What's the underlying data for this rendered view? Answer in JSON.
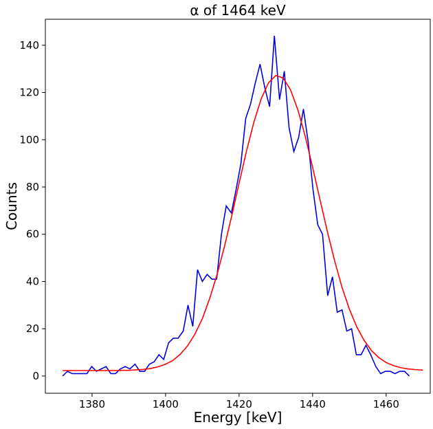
{
  "chart_data": {
    "type": "line",
    "title": "α of 1464 keV",
    "x_label": "Energy [keV]",
    "y_label": "Counts",
    "xlim": [
      1367.3,
      1472
    ],
    "ylim": [
      -7.3,
      151
    ],
    "xticks": [
      1380,
      1400,
      1420,
      1440,
      1460
    ],
    "yticks": [
      0,
      20,
      40,
      60,
      80,
      100,
      120,
      140
    ],
    "grid": false,
    "series": [
      {
        "color": "#0000dd",
        "x": [
          1372.0,
          1373.3,
          1374.6,
          1375.9,
          1377.2,
          1378.6,
          1379.9,
          1381.2,
          1382.5,
          1383.8,
          1385.1,
          1386.4,
          1387.7,
          1389.0,
          1390.3,
          1391.7,
          1393.0,
          1394.3,
          1395.6,
          1396.9,
          1398.2,
          1399.5,
          1400.8,
          1402.1,
          1403.4,
          1404.8,
          1406.1,
          1407.4,
          1408.7,
          1410.0,
          1411.3,
          1412.6,
          1413.9,
          1415.2,
          1416.5,
          1417.9,
          1419.2,
          1420.5,
          1421.8,
          1423.1,
          1424.4,
          1425.7,
          1427.0,
          1428.3,
          1429.6,
          1431.0,
          1432.3,
          1433.6,
          1434.9,
          1436.2,
          1437.5,
          1438.8,
          1440.1,
          1441.4,
          1442.7,
          1444.1,
          1445.4,
          1446.7,
          1448.0,
          1449.3,
          1450.6,
          1451.9,
          1453.2,
          1454.5,
          1455.8,
          1457.2,
          1458.5,
          1459.8,
          1461.1,
          1462.4,
          1463.7,
          1465.0,
          1466.3
        ],
        "values": [
          0,
          2,
          1,
          1,
          1,
          1,
          4,
          2,
          3,
          4,
          1,
          1,
          3,
          4,
          3,
          5,
          2,
          2,
          5,
          6,
          9,
          7,
          14,
          16,
          16,
          19,
          30,
          21,
          45,
          40,
          43,
          41,
          41,
          60,
          72,
          69,
          79,
          90,
          109,
          115,
          124,
          132,
          122,
          114,
          144,
          117,
          129,
          105,
          95,
          101,
          113,
          99,
          79,
          64,
          60,
          34,
          42,
          27,
          28,
          19,
          20,
          9,
          9,
          13,
          9,
          4,
          1,
          2,
          2,
          1,
          2,
          2,
          0
        ]
      },
      {
        "color": "#ff0000",
        "x": [
          1372,
          1374,
          1376,
          1378,
          1380,
          1382,
          1384,
          1386,
          1388,
          1390,
          1392,
          1394,
          1396,
          1398,
          1400,
          1402,
          1404,
          1406,
          1408,
          1410,
          1412,
          1414,
          1416,
          1418,
          1420,
          1422,
          1424,
          1426,
          1428,
          1430,
          1432,
          1434,
          1436,
          1438,
          1440,
          1442,
          1444,
          1446,
          1448,
          1450,
          1452,
          1454,
          1456,
          1458,
          1460,
          1462,
          1464,
          1466,
          1468,
          1470
        ],
        "values": [
          2.3,
          2.3,
          2.3,
          2.3,
          2.3,
          2.3,
          2.3,
          2.3,
          2.4,
          2.4,
          2.6,
          2.8,
          3.2,
          3.9,
          5.0,
          6.6,
          9.2,
          12.8,
          17.8,
          24.3,
          32.8,
          42.9,
          54.7,
          67.8,
          81.6,
          95.1,
          107.3,
          117.3,
          124.1,
          127.2,
          126.1,
          121.1,
          112.6,
          101.4,
          88.4,
          74.7,
          61.2,
          48.7,
          37.5,
          28.3,
          20.8,
          15.1,
          10.8,
          7.8,
          5.7,
          4.4,
          3.5,
          3.0,
          2.7,
          2.5
        ]
      }
    ]
  }
}
